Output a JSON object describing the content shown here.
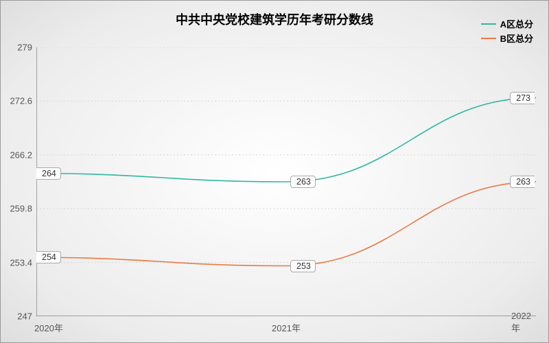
{
  "chart": {
    "type": "line",
    "title": "中共中央党校建筑学历年考研分数线",
    "title_fontsize": 18,
    "background_gradient": {
      "inner": "#ffffff",
      "outer": "#dedede"
    },
    "grid_color": "#d8d8d8",
    "axis_color": "#555555",
    "label_fontsize": 13,
    "data_label_fontsize": 12.5,
    "x": {
      "categories": [
        "2020年",
        "2021年",
        "2022年"
      ]
    },
    "y": {
      "min": 247,
      "max": 279,
      "step": 6.4,
      "ticks": [
        "247",
        "253.4",
        "259.8",
        "266.2",
        "272.6",
        "279"
      ]
    },
    "series": [
      {
        "name": "A区总分",
        "color": "#2fb8a0",
        "values": [
          264,
          263,
          273
        ],
        "labels": [
          "264",
          "263",
          "273"
        ]
      },
      {
        "name": "B区总分",
        "color": "#e87a44",
        "values": [
          254,
          253,
          263
        ],
        "labels": [
          "254",
          "253",
          "263"
        ]
      }
    ],
    "legend": {
      "position": "top-right"
    }
  }
}
